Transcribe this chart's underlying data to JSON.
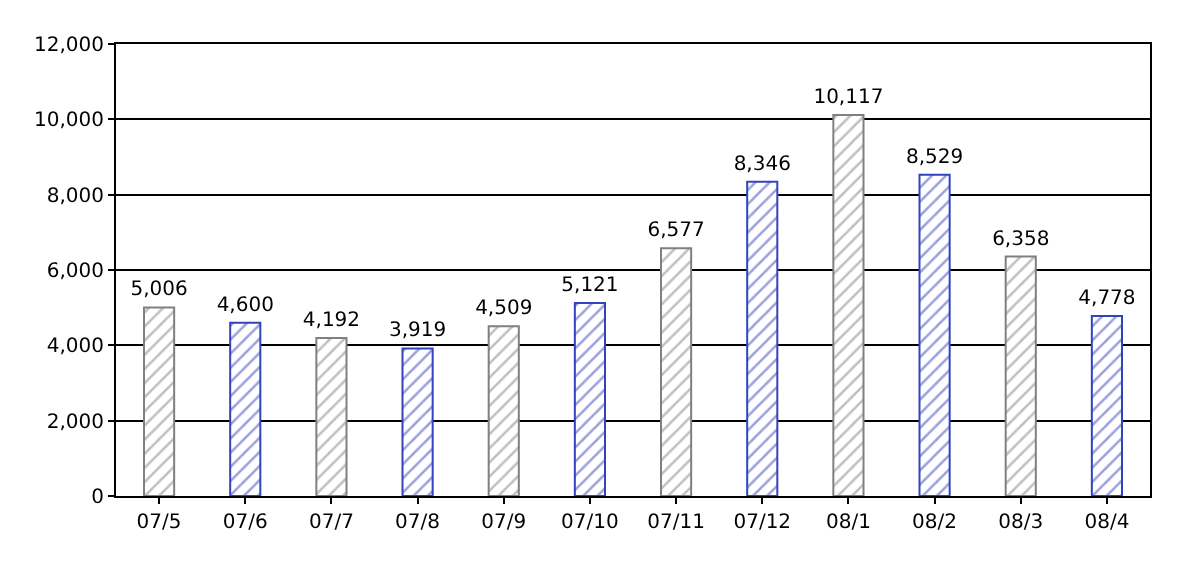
{
  "chart_data": {
    "type": "bar",
    "categories": [
      "07/5",
      "07/6",
      "07/7",
      "07/8",
      "07/9",
      "07/10",
      "07/11",
      "07/12",
      "08/1",
      "08/2",
      "08/3",
      "08/4"
    ],
    "values": [
      5006,
      4600,
      4192,
      3919,
      4509,
      5121,
      6577,
      8346,
      10117,
      8529,
      6358,
      4778
    ],
    "colors": [
      "#808080",
      "#3344bb",
      "#808080",
      "#3344bb",
      "#808080",
      "#3344bb",
      "#808080",
      "#3344bb",
      "#808080",
      "#3344bb",
      "#808080",
      "#3344bb"
    ],
    "value_labels": [
      "5,006",
      "4,600",
      "4,192",
      "3,919",
      "4,509",
      "5,121",
      "6,577",
      "8,346",
      "10,117",
      "8,529",
      "6,358",
      "4,778"
    ],
    "ylim": [
      0,
      12000
    ],
    "yticks": [
      0,
      {
        "value": 2000,
        "label": "2,000"
      },
      {
        "value": 4000,
        "label": "4,000"
      },
      {
        "value": 6000,
        "label": "6,000"
      },
      {
        "value": 8000,
        "label": "8,000"
      },
      {
        "value": 10000,
        "label": "10,000"
      },
      {
        "value": 12000,
        "label": "12,000"
      }
    ],
    "grid": "y",
    "legend": false
  }
}
